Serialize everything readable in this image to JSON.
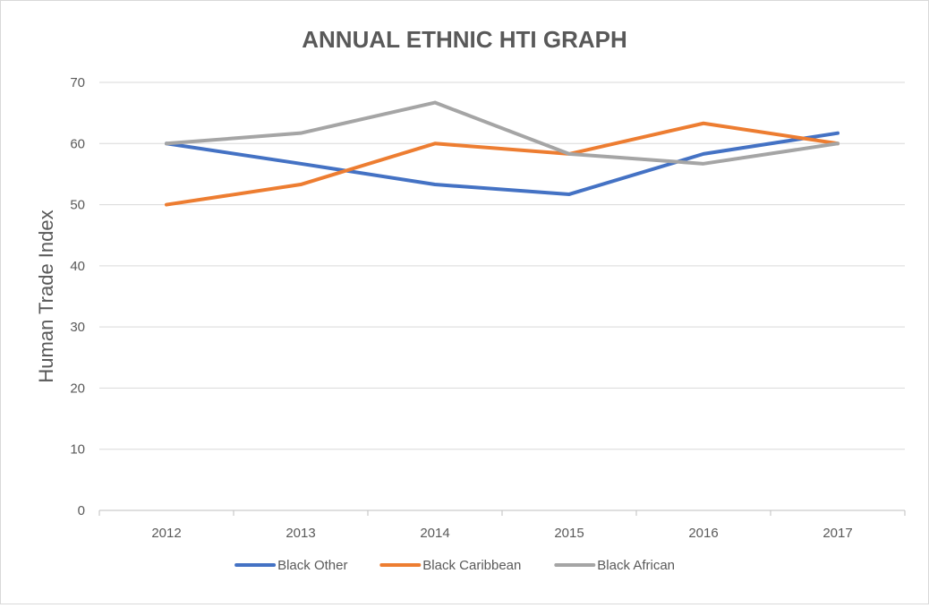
{
  "chart_data": {
    "type": "line",
    "title": "ANNUAL ETHNIC HTI GRAPH",
    "xlabel": "",
    "ylabel": "Human Trade Index",
    "categories": [
      "2012",
      "2013",
      "2014",
      "2015",
      "2016",
      "2017"
    ],
    "ylim": [
      0,
      70
    ],
    "yticks": [
      0,
      10,
      20,
      30,
      40,
      50,
      60,
      70
    ],
    "grid": true,
    "legend_position": "bottom",
    "series": [
      {
        "name": "Black Other",
        "color": "#4472c4",
        "values": [
          60,
          56.7,
          53.3,
          51.7,
          58.3,
          61.7
        ]
      },
      {
        "name": "Black Caribbean",
        "color": "#ed7d31",
        "values": [
          50,
          53.3,
          60,
          58.3,
          63.3,
          60
        ]
      },
      {
        "name": "Black African",
        "color": "#a5a5a5",
        "values": [
          60,
          61.7,
          66.7,
          58.3,
          56.7,
          60
        ]
      }
    ]
  }
}
